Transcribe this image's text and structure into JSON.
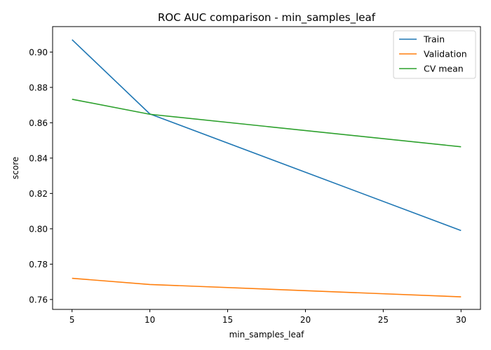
{
  "chart_data": {
    "type": "line",
    "title": "ROC AUC comparison - min_samples_leaf",
    "xlabel": "min_samples_leaf",
    "ylabel": "score",
    "x": [
      5,
      10,
      30
    ],
    "xlim": [
      3.75,
      31.25
    ],
    "ylim": [
      0.7544,
      0.9144
    ],
    "xticks": [
      5,
      10,
      15,
      20,
      25,
      30
    ],
    "yticks": [
      0.76,
      0.78,
      0.8,
      0.82,
      0.84,
      0.86,
      0.88,
      0.9
    ],
    "xtick_labels": [
      "5",
      "10",
      "15",
      "20",
      "25",
      "30"
    ],
    "ytick_labels": [
      "0.76",
      "0.78",
      "0.80",
      "0.82",
      "0.84",
      "0.86",
      "0.88",
      "0.90"
    ],
    "grid": false,
    "legend_position": "top-right",
    "series": [
      {
        "name": "Train",
        "color": "#1f77b4",
        "values": [
          0.907,
          0.865,
          0.799
        ]
      },
      {
        "name": "Validation",
        "color": "#ff7f0e",
        "values": [
          0.772,
          0.7685,
          0.7615
        ]
      },
      {
        "name": "CV mean",
        "color": "#2ca02c",
        "values": [
          0.8733,
          0.8648,
          0.8464
        ]
      }
    ]
  }
}
